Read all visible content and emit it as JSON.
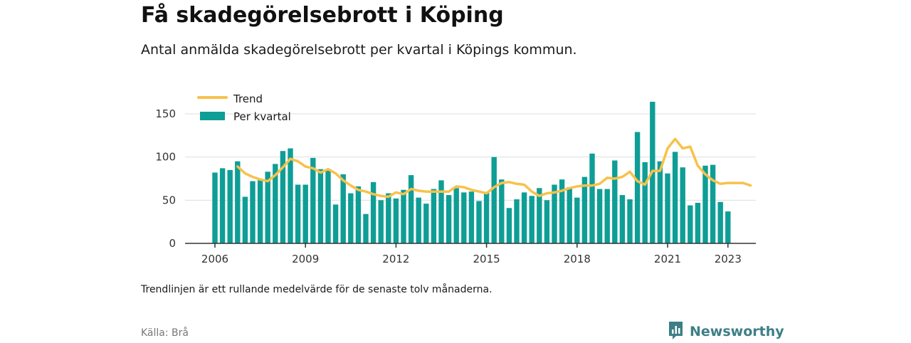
{
  "title": "Få skadegörelsebrott i Köping",
  "subtitle": "Antal anmälda skadegörelsebrott per kvartal i Köpings kommun.",
  "note": "Trendlinjen är ett rullande medelvärde för de senaste tolv månaderna.",
  "source": "Källa: Brå",
  "brand": "Newsworthy",
  "colors": {
    "bars": "#0e9e96",
    "trend": "#f7c24b",
    "axis": "#333333",
    "grid": "#dddddd",
    "brand": "#3d7f86"
  },
  "chart_data": {
    "type": "bar",
    "x_ticks": [
      "2006",
      "2009",
      "2012",
      "2015",
      "2018",
      "2021",
      "2023"
    ],
    "y_ticks": [
      0,
      50,
      100,
      150
    ],
    "ylim": [
      0,
      165
    ],
    "legend": {
      "placement": "top-left",
      "trend_label": "Trend",
      "bars_label": "Per kvartal"
    },
    "grid": true,
    "series": [
      {
        "name": "Per kvartal",
        "type": "bar",
        "start": "2006 Q1",
        "values": [
          82,
          87,
          85,
          95,
          54,
          72,
          73,
          83,
          92,
          107,
          110,
          68,
          68,
          99,
          86,
          86,
          45,
          80,
          58,
          66,
          34,
          71,
          50,
          58,
          52,
          62,
          79,
          53,
          46,
          63,
          73,
          56,
          64,
          59,
          60,
          49,
          59,
          100,
          74,
          41,
          51,
          59,
          55,
          64,
          50,
          68,
          74,
          65,
          53,
          77,
          104,
          63,
          63,
          96,
          56,
          51,
          129,
          94,
          164,
          95,
          81,
          106,
          88,
          44,
          47,
          90,
          91,
          48,
          37
        ]
      },
      {
        "name": "Trend",
        "type": "line",
        "start": "2006 Q4",
        "values": [
          89,
          81,
          77,
          74,
          72,
          79,
          88,
          98,
          95,
          89,
          87,
          82,
          86,
          81,
          73,
          67,
          62,
          60,
          57,
          55,
          54,
          59,
          57,
          63,
          61,
          60,
          60,
          60,
          60,
          66,
          65,
          62,
          60,
          58,
          65,
          70,
          71,
          69,
          68,
          60,
          55,
          58,
          59,
          61,
          64,
          66,
          67,
          67,
          69,
          76,
          75,
          77,
          83,
          72,
          68,
          84,
          84,
          110,
          121,
          110,
          112,
          90,
          80,
          73,
          69,
          70,
          70,
          70,
          67
        ]
      }
    ]
  }
}
